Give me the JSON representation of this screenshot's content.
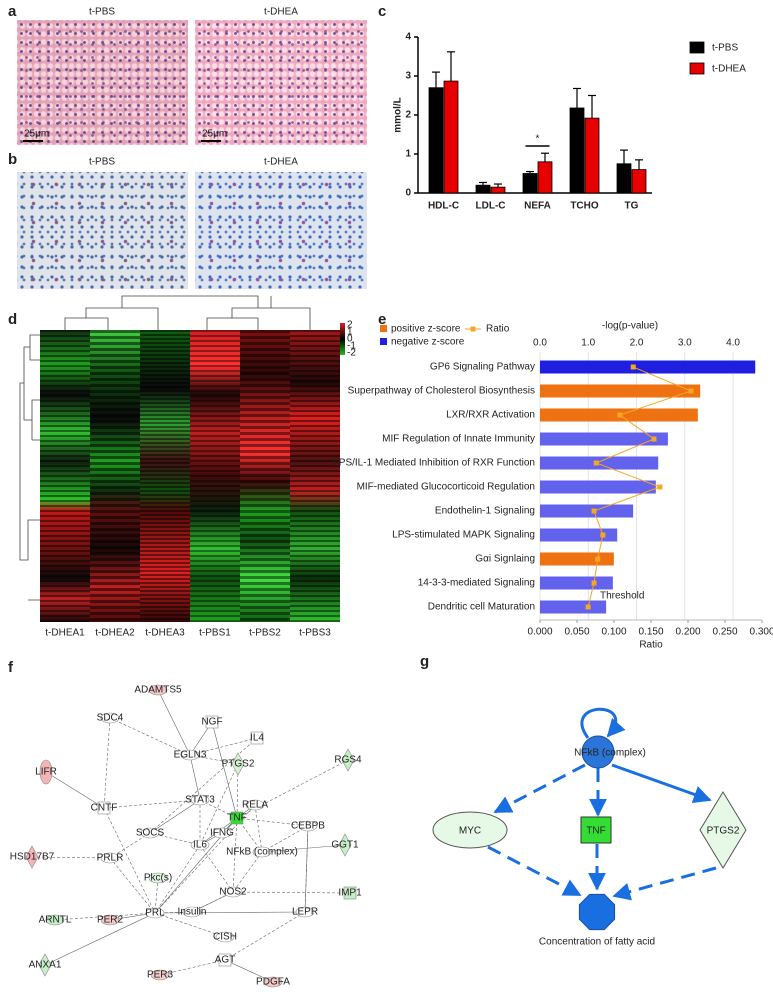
{
  "panels": [
    "a",
    "b",
    "c",
    "d",
    "e",
    "f",
    "g"
  ],
  "micrographs": {
    "a": {
      "labels": [
        "t-PBS",
        "t-DHEA"
      ],
      "scale_bars": [
        "25μm",
        "25μm"
      ]
    },
    "b": {
      "labels": [
        "t-PBS",
        "t-DHEA"
      ]
    }
  },
  "chart_data": [
    {
      "type": "bar",
      "ylabel": "mmol/L",
      "categories": [
        "HDL-C",
        "LDL-C",
        "NEFA",
        "TCHO",
        "TG"
      ],
      "series": [
        {
          "name": "t-PBS",
          "color": "#000000",
          "values": [
            2.7,
            0.2,
            0.5,
            2.18,
            0.75
          ],
          "errors": [
            0.4,
            0.07,
            0.05,
            0.5,
            0.35
          ]
        },
        {
          "name": "t-DHEA",
          "color": "#e60000",
          "values": [
            2.87,
            0.15,
            0.8,
            1.92,
            0.6
          ],
          "errors": [
            0.75,
            0.08,
            0.22,
            0.58,
            0.25
          ]
        }
      ],
      "annotation": "*",
      "ylim": [
        0,
        4
      ],
      "yticks": [
        0,
        1,
        2,
        3,
        4
      ]
    },
    {
      "type": "hbar",
      "xlabel": "-log(p-value)",
      "x2label": "Ratio",
      "categories": [
        "GP6 Signaling Pathway",
        "Superpathway of Cholesterol Biosynthesis",
        "LXR/RXR Activation",
        "MIF Regulation of Innate Immunity",
        "LPS/IL-1 Mediated Inhibition of RXR Function",
        "MIF-mediated Glucocorticoid Regulation",
        "Endothelin-1 Signaling",
        "LPS-stimulated MAPK Signaling",
        "Gαi Signlaing",
        "14-3-3-mediated Signaling",
        "Dendritic cell Maturation"
      ],
      "values": [
        4.46,
        3.32,
        3.27,
        2.65,
        2.45,
        2.4,
        1.93,
        1.6,
        1.53,
        1.51,
        1.37
      ],
      "colors": [
        "#1f1fe0",
        "#ee7212",
        "#ee7212",
        "#6262ec",
        "#6262ec",
        "#6262ec",
        "#6262ec",
        "#6262ec",
        "#ee7212",
        "#6262ec",
        "#6262ec"
      ],
      "legend": [
        {
          "name": "positive z-score",
          "color": "#ee7212"
        },
        {
          "name": "negative z-score",
          "color": "#1f1fe0"
        }
      ],
      "ratio": {
        "name": "Ratio",
        "color": "#f5a623",
        "values": [
          0.126,
          0.204,
          0.108,
          0.154,
          0.076,
          0.162,
          0.073,
          0.085,
          0.078,
          0.073,
          0.065
        ]
      },
      "threshold_label": "Threshold",
      "xlim": [
        0,
        4.6
      ],
      "xticks": [
        {
          "value": 0,
          "label": "0.0"
        },
        {
          "value": 1,
          "label": "1.0"
        },
        {
          "value": 2,
          "label": "2.0"
        },
        {
          "value": 3,
          "label": "3.0"
        },
        {
          "value": 4,
          "label": "4.0"
        }
      ],
      "x2lim": [
        0,
        0.3
      ],
      "x2ticks": [
        {
          "value": 0,
          "label": "0.000"
        },
        {
          "value": 0.05,
          "label": "0.050"
        },
        {
          "value": 0.1,
          "label": "0.100"
        },
        {
          "value": 0.15,
          "label": "0.150"
        },
        {
          "value": 0.2,
          "label": "0.200"
        },
        {
          "value": 0.25,
          "label": "0.250"
        },
        {
          "value": 0.3,
          "label": "0.300"
        }
      ],
      "grid": true
    }
  ],
  "heatmap": {
    "columns": [
      "t-DHEA1",
      "t-DHEA2",
      "t-DHEA3",
      "t-PBS1",
      "t-PBS2",
      "t-PBS3"
    ],
    "colorbar_ticks": [
      2,
      1,
      0,
      -1,
      -2
    ]
  },
  "network": {
    "nodes": [
      {
        "label": "ADAMTS5",
        "color": "#f6c9c9"
      },
      {
        "label": "SDC4",
        "color": "#ffffff"
      },
      {
        "label": "NGF",
        "color": "#ffffff"
      },
      {
        "label": "IL4",
        "color": "#ffffff"
      },
      {
        "label": "EGLN3",
        "color": "#ffffff"
      },
      {
        "label": "PTGS2",
        "color": "#d4f2d4"
      },
      {
        "label": "RELA",
        "color": "#ffffff"
      },
      {
        "label": "RGS4",
        "color": "#c6eec6"
      },
      {
        "label": "LIFR",
        "color": "#f4b4b4"
      },
      {
        "label": "CNTF",
        "color": "#ffffff"
      },
      {
        "label": "STAT3",
        "color": "#ffffff"
      },
      {
        "label": "TNF",
        "color": "#33dd33"
      },
      {
        "label": "CEBPB",
        "color": "#ffffff"
      },
      {
        "label": "SOCS",
        "color": "#ffffff"
      },
      {
        "label": "IL6",
        "color": "#ffffff"
      },
      {
        "label": "IFNG",
        "color": "#ffffff"
      },
      {
        "label": "NFkB (complex)",
        "color": "#ffffff"
      },
      {
        "label": "HSD17B7",
        "color": "#f4b4b4"
      },
      {
        "label": "GGT1",
        "color": "#c6eec6"
      },
      {
        "label": "PRLR",
        "color": "#ffffff"
      },
      {
        "label": "Pkc(s)",
        "color": "#e2f6e2"
      },
      {
        "label": "NOS2",
        "color": "#ffffff"
      },
      {
        "label": "IMP1",
        "color": "#c6eec6"
      },
      {
        "label": "ARNTL",
        "color": "#c6eec6"
      },
      {
        "label": "PER2",
        "color": "#f6c9c9"
      },
      {
        "label": "PRL",
        "color": "#ffffff"
      },
      {
        "label": "Insulin",
        "color": "#ffffff"
      },
      {
        "label": "LEPR",
        "color": "#ffffff"
      },
      {
        "label": "CISH",
        "color": "#ffffff"
      },
      {
        "label": "ANXA1",
        "color": "#c6eec6"
      },
      {
        "label": "AGT",
        "color": "#ffffff"
      },
      {
        "label": "PER3",
        "color": "#f6c9c9"
      },
      {
        "label": "PDGFA",
        "color": "#f6c9c9"
      }
    ]
  },
  "diagram": {
    "nodes": [
      {
        "label": "NFkB (complex)",
        "color": "#2b74d8"
      },
      {
        "label": "MYC",
        "color": "#e6f8e6"
      },
      {
        "label": "TNF",
        "color": "#33dd33"
      },
      {
        "label": "PTGS2",
        "color": "#e6f8e6"
      },
      {
        "label": "Concentration of fatty acid",
        "color": "#1a6fe0"
      }
    ]
  }
}
